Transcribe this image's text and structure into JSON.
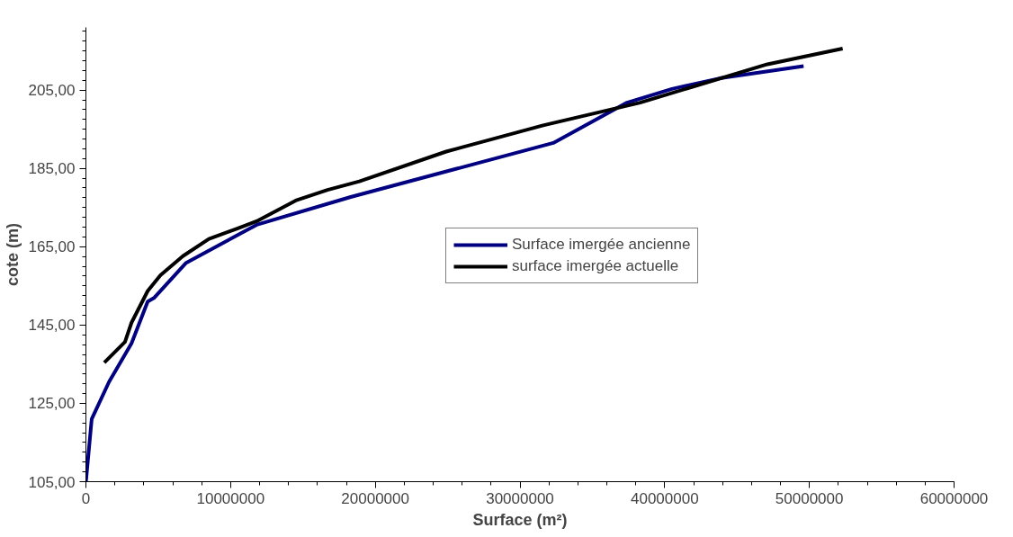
{
  "chart_data": {
    "type": "line",
    "xlabel": "Surface (m²)",
    "ylabel": "cote (m)",
    "xlim": [
      0,
      60000000
    ],
    "xticks": [
      0,
      10000000,
      20000000,
      30000000,
      40000000,
      50000000,
      60000000
    ],
    "ylim": [
      105,
      221
    ],
    "yticks": [
      {
        "value": 105,
        "label": "105,00"
      },
      {
        "value": 125,
        "label": "125,00"
      },
      {
        "value": 145,
        "label": "145,00"
      },
      {
        "value": 165,
        "label": "165,00"
      },
      {
        "value": 185,
        "label": "185,00"
      },
      {
        "value": 205,
        "label": "205,00"
      }
    ],
    "grid": false,
    "legend": "right",
    "marker": "none",
    "line_style": "solid",
    "series": [
      {
        "name": "Surface imergée ancienne",
        "color": "#000080",
        "x": [
          0,
          400000,
          1600000,
          3150000,
          4270000,
          4700000,
          6900000,
          11800000,
          18300000,
          32300000,
          37400000,
          40500000,
          43800000,
          49600000
        ],
        "values": [
          105,
          121,
          130.5,
          140.3,
          151,
          151.9,
          160.8,
          170.6,
          177.7,
          191.5,
          201.8,
          205.3,
          208,
          211.1
        ]
      },
      {
        "name": "surface imergée actuelle",
        "color": "#000000",
        "x": [
          1270000,
          2700000,
          3150000,
          4270000,
          5150000,
          6700000,
          8500000,
          10500000,
          11800000,
          14500000,
          16700000,
          18900000,
          24900000,
          31600000,
          38300000,
          47100000,
          52300000
        ],
        "values": [
          135.4,
          140.7,
          145.6,
          153.7,
          157.7,
          162.6,
          167,
          169.7,
          171.5,
          176.8,
          179.5,
          181.7,
          189.3,
          196,
          201.8,
          211.6,
          215.6
        ]
      }
    ]
  }
}
